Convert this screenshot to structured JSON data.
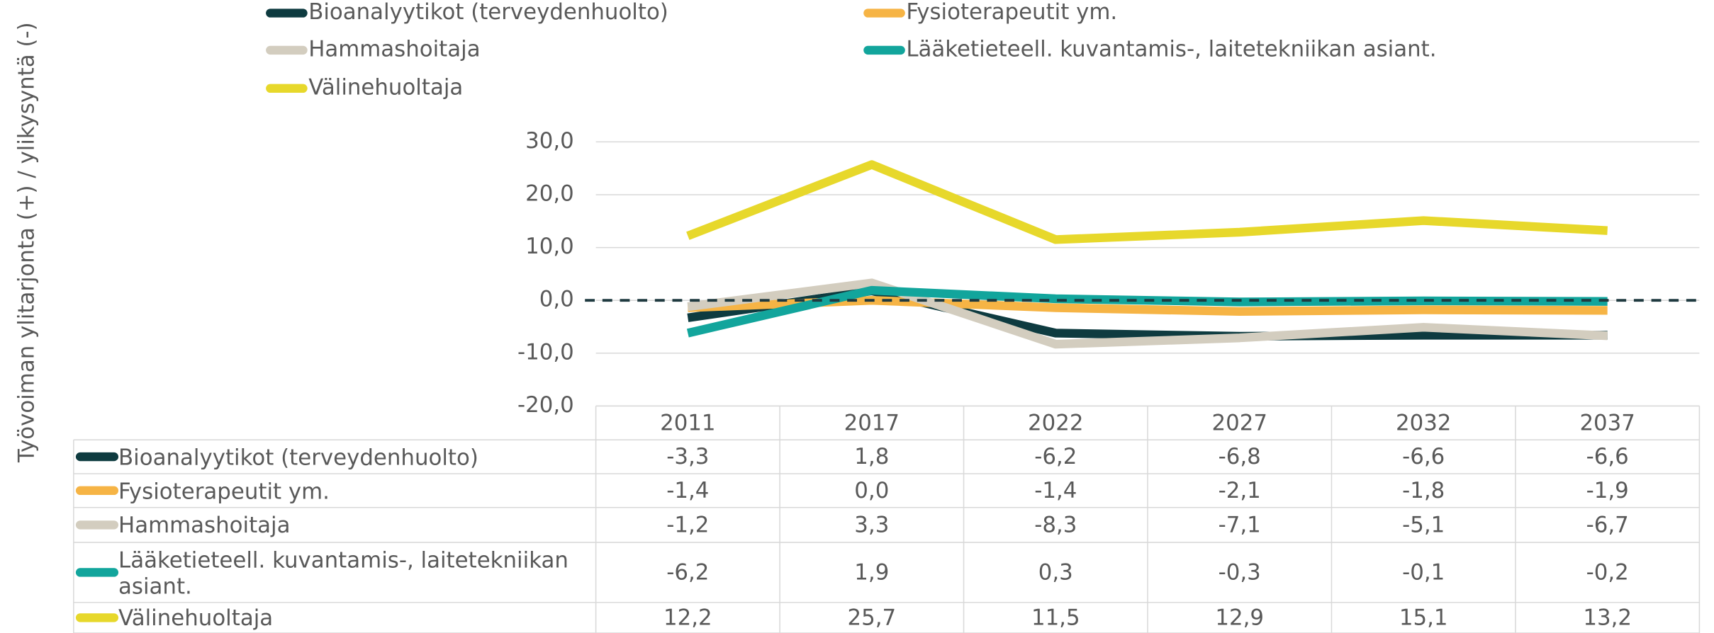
{
  "chart_data": {
    "type": "line",
    "y_label": "Työvoiman ylitarjonta (+) / ylikysyntä (-)",
    "categories": [
      "2011",
      "2017",
      "2022",
      "2027",
      "2032",
      "2037"
    ],
    "series": [
      {
        "name": "Bioanalyytikot (terveydenhuolto)",
        "color": "#0e3b40",
        "values": [
          -3.3,
          1.8,
          -6.2,
          -6.8,
          -6.6,
          -6.6
        ],
        "value_labels": [
          "-3,3",
          "1,8",
          "-6,2",
          "-6,8",
          "-6,6",
          "-6,6"
        ]
      },
      {
        "name": "Fysioterapeutit ym.",
        "color": "#f6b445",
        "values": [
          -1.4,
          0.0,
          -1.4,
          -2.1,
          -1.8,
          -1.9
        ],
        "value_labels": [
          "-1,4",
          "0,0",
          "-1,4",
          "-2,1",
          "-1,8",
          "-1,9"
        ]
      },
      {
        "name": "Hammashoitaja",
        "color": "#d3cdbf",
        "values": [
          -1.2,
          3.3,
          -8.3,
          -7.1,
          -5.1,
          -6.7
        ],
        "value_labels": [
          "-1,2",
          "3,3",
          "-8,3",
          "-7,1",
          "-5,1",
          "-6,7"
        ]
      },
      {
        "name": "Lääketieteell. kuvantamis-, laitetekniikan asiant.",
        "color": "#12a59c",
        "values": [
          -6.2,
          1.9,
          0.3,
          -0.3,
          -0.1,
          -0.2
        ],
        "value_labels": [
          "-6,2",
          "1,9",
          "0,3",
          "-0,3",
          "-0,1",
          "-0,2"
        ]
      },
      {
        "name": "Välinehuoltaja",
        "color": "#e7d82b",
        "values": [
          12.2,
          25.7,
          11.5,
          12.9,
          15.1,
          13.2
        ],
        "value_labels": [
          "12,2",
          "25,7",
          "11,5",
          "12,9",
          "15,1",
          "13,2"
        ]
      }
    ],
    "ylim": [
      -20,
      30
    ],
    "yticks": [
      {
        "value": -20,
        "label": "-20,0"
      },
      {
        "value": -10,
        "label": "-10,0"
      },
      {
        "value": 0,
        "label": "0,0"
      },
      {
        "value": 10,
        "label": "10,0"
      },
      {
        "value": 20,
        "label": "20,0"
      },
      {
        "value": 30,
        "label": "30,0"
      }
    ],
    "grid": true,
    "legend": "top",
    "data_table": true
  }
}
